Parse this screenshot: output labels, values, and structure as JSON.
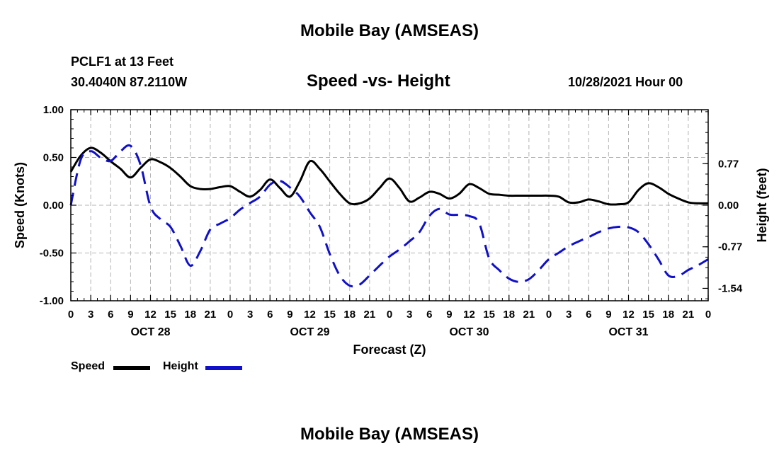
{
  "page": {
    "title": "Mobile Bay (AMSEAS)",
    "station": "PCLF1 at 13 Feet",
    "coordinates": "30.4040N  87.2110W",
    "subtitle": "Speed -vs- Height",
    "datetime": "10/28/2021 Hour 00",
    "footer_title": "Mobile Bay (AMSEAS)"
  },
  "chart_data": {
    "type": "line",
    "xlabel": "Forecast (Z)",
    "ylabel_left": "Speed (Knots)",
    "ylabel_right": "Height (feet)",
    "x_range": [
      0,
      96
    ],
    "x_tick_labels": [
      "0",
      "3",
      "6",
      "9",
      "12",
      "15",
      "18",
      "21",
      "0",
      "3",
      "6",
      "9",
      "12",
      "15",
      "18",
      "21",
      "0",
      "3",
      "6",
      "9",
      "12",
      "15",
      "18",
      "21",
      "0",
      "3",
      "6",
      "9",
      "12",
      "15",
      "18",
      "21",
      "0"
    ],
    "date_labels": [
      {
        "label": "OCT 28",
        "x": 12
      },
      {
        "label": "OCT 29",
        "x": 36
      },
      {
        "label": "OCT 30",
        "x": 60
      },
      {
        "label": "OCT 31",
        "x": 84
      }
    ],
    "y_left_range": [
      -1.0,
      1.0
    ],
    "y_left_ticks": [
      "1.00",
      "0.50",
      "0.00",
      "-0.50",
      "-1.00"
    ],
    "y_right_range": [
      -1.77,
      1.77
    ],
    "y_right_ticks": [
      "0.77",
      "0.00",
      "-0.77",
      "-1.54"
    ],
    "grid": true,
    "legend_position": "bottom-left",
    "series": [
      {
        "name": "Speed",
        "axis": "left",
        "color": "#000000",
        "style": "solid",
        "x": [
          0,
          1.5,
          3,
          4.5,
          6,
          7.5,
          9,
          10.5,
          12,
          13.5,
          15,
          16.5,
          18,
          19.5,
          21,
          22.5,
          24,
          25.5,
          27,
          28.5,
          30,
          31.5,
          33,
          34.5,
          36,
          37.5,
          39,
          40.5,
          42,
          43.5,
          45,
          46.5,
          48,
          49.5,
          51,
          52.5,
          54,
          55.5,
          57,
          58.5,
          60,
          61.5,
          63,
          64.5,
          66,
          67.5,
          69,
          70.5,
          72,
          73.5,
          75,
          76.5,
          78,
          79.5,
          81,
          82.5,
          84,
          85.5,
          87,
          88.5,
          90,
          91.5,
          93,
          94.5,
          96
        ],
        "values": [
          0.35,
          0.52,
          0.6,
          0.55,
          0.46,
          0.38,
          0.29,
          0.39,
          0.48,
          0.45,
          0.39,
          0.3,
          0.2,
          0.17,
          0.17,
          0.19,
          0.2,
          0.14,
          0.09,
          0.16,
          0.27,
          0.18,
          0.09,
          0.25,
          0.46,
          0.38,
          0.25,
          0.12,
          0.02,
          0.02,
          0.07,
          0.18,
          0.28,
          0.18,
          0.04,
          0.08,
          0.14,
          0.12,
          0.07,
          0.12,
          0.22,
          0.18,
          0.12,
          0.11,
          0.1,
          0.1,
          0.1,
          0.1,
          0.1,
          0.09,
          0.03,
          0.03,
          0.06,
          0.04,
          0.01,
          0.01,
          0.03,
          0.16,
          0.23,
          0.19,
          0.12,
          0.07,
          0.03,
          0.02,
          0.02
        ]
      },
      {
        "name": "Height",
        "axis": "right",
        "color": "#1010c8",
        "style": "dashed",
        "x": [
          0,
          1.5,
          3,
          4.5,
          6,
          7.5,
          9,
          10.5,
          12,
          13.5,
          15,
          16.5,
          18,
          19.5,
          21,
          22.5,
          24,
          25.5,
          27,
          28.5,
          30,
          31.5,
          33,
          34.5,
          36,
          37.5,
          39,
          40.5,
          42,
          43.5,
          45,
          46.5,
          48,
          49.5,
          51,
          52.5,
          54,
          55.5,
          57,
          58.5,
          60,
          61.5,
          63,
          64.5,
          66,
          67.5,
          69,
          70.5,
          72,
          73.5,
          75,
          76.5,
          78,
          79.5,
          81,
          82.5,
          84,
          85.5,
          87,
          88.5,
          90,
          91.5,
          93,
          94.5,
          96
        ],
        "values": [
          0.0,
          0.85,
          1.0,
          0.88,
          0.82,
          1.0,
          1.1,
          0.75,
          -0.02,
          -0.26,
          -0.4,
          -0.75,
          -1.12,
          -0.85,
          -0.45,
          -0.34,
          -0.24,
          -0.08,
          0.04,
          0.16,
          0.38,
          0.45,
          0.33,
          0.16,
          -0.13,
          -0.4,
          -0.9,
          -1.3,
          -1.49,
          -1.47,
          -1.3,
          -1.12,
          -0.95,
          -0.82,
          -0.67,
          -0.5,
          -0.2,
          -0.07,
          -0.17,
          -0.18,
          -0.2,
          -0.33,
          -0.98,
          -1.2,
          -1.36,
          -1.42,
          -1.37,
          -1.2,
          -1.0,
          -0.88,
          -0.76,
          -0.67,
          -0.59,
          -0.5,
          -0.43,
          -0.4,
          -0.41,
          -0.5,
          -0.72,
          -1.0,
          -1.3,
          -1.31,
          -1.2,
          -1.11,
          -1.0
        ]
      }
    ]
  }
}
